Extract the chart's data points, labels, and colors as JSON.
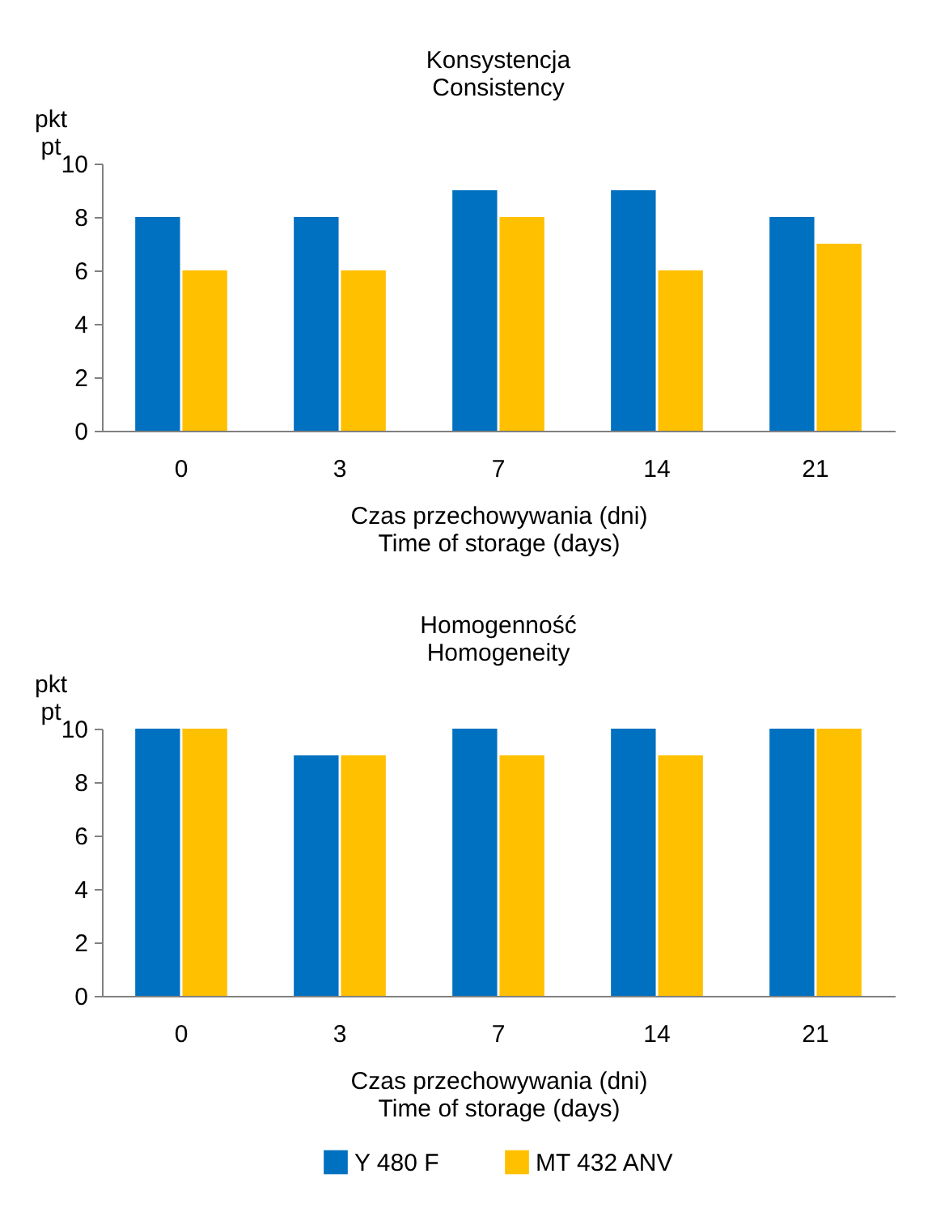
{
  "chart_data": [
    {
      "type": "bar",
      "title": "Konsystencja\nConsistency",
      "ylabel": "pkt\npt",
      "xlabel": "Czas przechowywania (dni)\nTime of storage (days)",
      "categories": [
        "0",
        "3",
        "7",
        "14",
        "21"
      ],
      "series": [
        {
          "name": "Y 480 F",
          "color": "#0070c0",
          "values": [
            8,
            8,
            9,
            9,
            8
          ]
        },
        {
          "name": "MT 432 ANV",
          "color": "#ffc000",
          "values": [
            6,
            6,
            8,
            6,
            7
          ]
        }
      ],
      "ylim": [
        0,
        10
      ],
      "yticks": [
        0,
        2,
        4,
        6,
        8,
        10
      ],
      "grid": false,
      "legend": "bottom"
    },
    {
      "type": "bar",
      "title": "Homogenność\nHomogeneity",
      "ylabel": "pkt\npt",
      "xlabel": "Czas przechowywania (dni)\nTime of storage (days)",
      "categories": [
        "0",
        "3",
        "7",
        "14",
        "21"
      ],
      "series": [
        {
          "name": "Y 480 F",
          "color": "#0070c0",
          "values": [
            10,
            9,
            10,
            10,
            10
          ]
        },
        {
          "name": "MT 432 ANV",
          "color": "#ffc000",
          "values": [
            10,
            9,
            9,
            9,
            10
          ]
        }
      ],
      "ylim": [
        0,
        10
      ],
      "yticks": [
        0,
        2,
        4,
        6,
        8,
        10
      ],
      "grid": false,
      "legend": "bottom"
    }
  ]
}
